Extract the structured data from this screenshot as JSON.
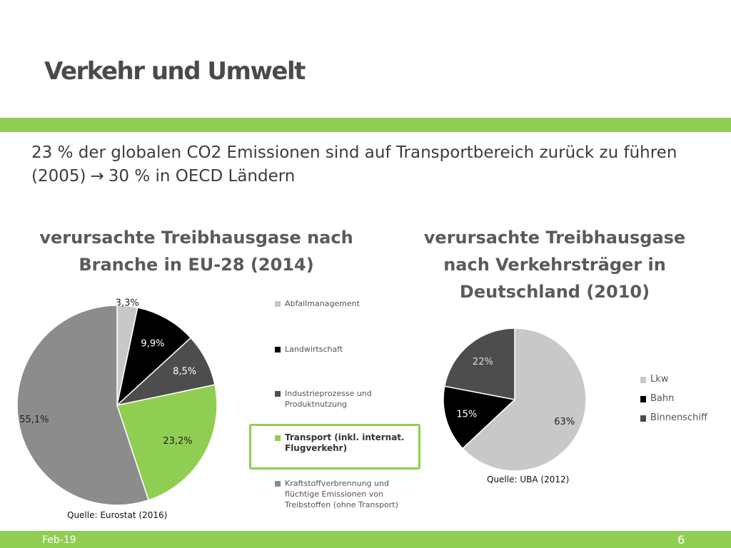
{
  "slide": {
    "title": "Verkehr und Umwelt",
    "intro_line1": "23 % der globalen CO2 Emissionen sind auf Transportbereich zurück zu führen",
    "intro_line2_pre": "(2005)",
    "intro_line2_post": "30 % in OECD Ländern",
    "footer_date": "Feb-19",
    "footer_page": "6"
  },
  "colors": {
    "accent_green": "#8fce52",
    "light_gray": "#c8c8c8",
    "black": "#000000",
    "dark_gray": "#4d4d4d",
    "mid_gray": "#8c8c8c"
  },
  "chart_data": [
    {
      "type": "pie",
      "title_line1": "verursachte Treibhausgase nach",
      "title_line2": "Branche in EU-28 (2014)",
      "source": "Quelle: Eurostat (2016)",
      "legend_placement": "right",
      "slices": [
        {
          "name": "Abfallmanagement",
          "value": 3.3,
          "label": "3,3%",
          "color": "#c8c8c8",
          "label_color": "#222222"
        },
        {
          "name": "Landwirtschaft",
          "value": 9.9,
          "label": "9,9%",
          "color": "#000000",
          "label_color": "#ffffff"
        },
        {
          "name": "Industrieprozesse und Produktnutzung",
          "value": 8.5,
          "label": "8,5%",
          "color": "#4d4d4d",
          "label_color": "#ffffff"
        },
        {
          "name": "Transport (inkl. internat. Flugverkehr)",
          "value": 23.2,
          "label": "23,2%",
          "color": "#8fce52",
          "label_color": "#222222",
          "highlight": true
        },
        {
          "name": "Kraftstoffverbrennung und flüchtige Emissionen von Treibstoffen (ohne Transport)",
          "value": 55.1,
          "label": "55,1%",
          "color": "#8c8c8c",
          "label_color": "#222222"
        }
      ]
    },
    {
      "type": "pie",
      "title_line1": "verursachte Treibhausgase",
      "title_line2": "nach Verkehrsträger in",
      "title_line3": "Deutschland (2010)",
      "source": "Quelle: UBA (2012)",
      "legend_placement": "right",
      "slices": [
        {
          "name": "Lkw",
          "value": 63,
          "label": "63%",
          "color": "#c8c8c8",
          "label_color": "#222222"
        },
        {
          "name": "Bahn",
          "value": 15,
          "label": "15%",
          "color": "#000000",
          "label_color": "#ffffff"
        },
        {
          "name": "Binnenschiff",
          "value": 22,
          "label": "22%",
          "color": "#4d4d4d",
          "label_color": "#dddddd"
        }
      ]
    }
  ]
}
